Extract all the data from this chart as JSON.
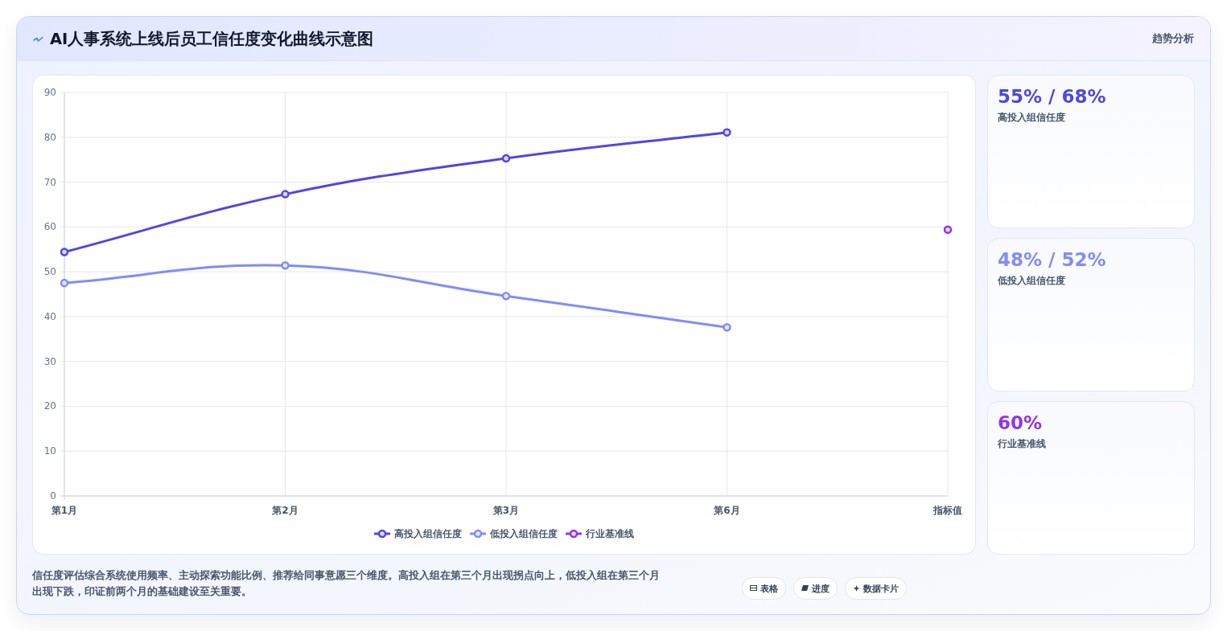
{
  "chart_data": [
    {
      "type": "line",
      "title": "AI人事系统上线后员工信任度变化曲线示意图",
      "categories": [
        "第1月",
        "第2月",
        "第3月",
        "第6月",
        "指标值"
      ],
      "series": [
        {
          "name": "高投入组信任度",
          "color": "#4f46e5",
          "values": [
            54.4,
            67.3,
            75.3,
            81.1,
            null
          ]
        },
        {
          "name": "低投入组信任度",
          "color": "#818cf8",
          "values": [
            47.5,
            51.4,
            44.6,
            37.6,
            null
          ]
        },
        {
          "name": "行业基准线",
          "color": "#9333ea",
          "values": [
            null,
            null,
            null,
            null,
            59.4
          ]
        }
      ],
      "ylim": [
        0,
        90
      ],
      "yticks": [
        0,
        10,
        20,
        30,
        40,
        50,
        60,
        70,
        80,
        90
      ],
      "grid": true,
      "legend": "bottom",
      "marker": "circle",
      "line_style": "solid",
      "annotations": [
        "信任度评估综合系统使用频率、主动探索功能比例、推荐给同事意愿三个维度。高投入组在第三个月出现拐点向上，低投入组在第三个月出现下跌，印证前两个月的基础建设至关重要。",
        "表格",
        "进度",
        "数据卡片"
      ]
    },
    {
      "type": "other",
      "title": "55% / 68%",
      "subtitle": "高投入组信任度",
      "color": "#4f46e5",
      "annotations": [
        "趋势分析"
      ]
    },
    {
      "type": "other",
      "title": "48% / 52%",
      "subtitle": "低投入组信任度",
      "color": "#818cf8"
    },
    {
      "type": "other",
      "title": "60%",
      "subtitle": "行业基准线",
      "color": "#9333ea"
    }
  ]
}
